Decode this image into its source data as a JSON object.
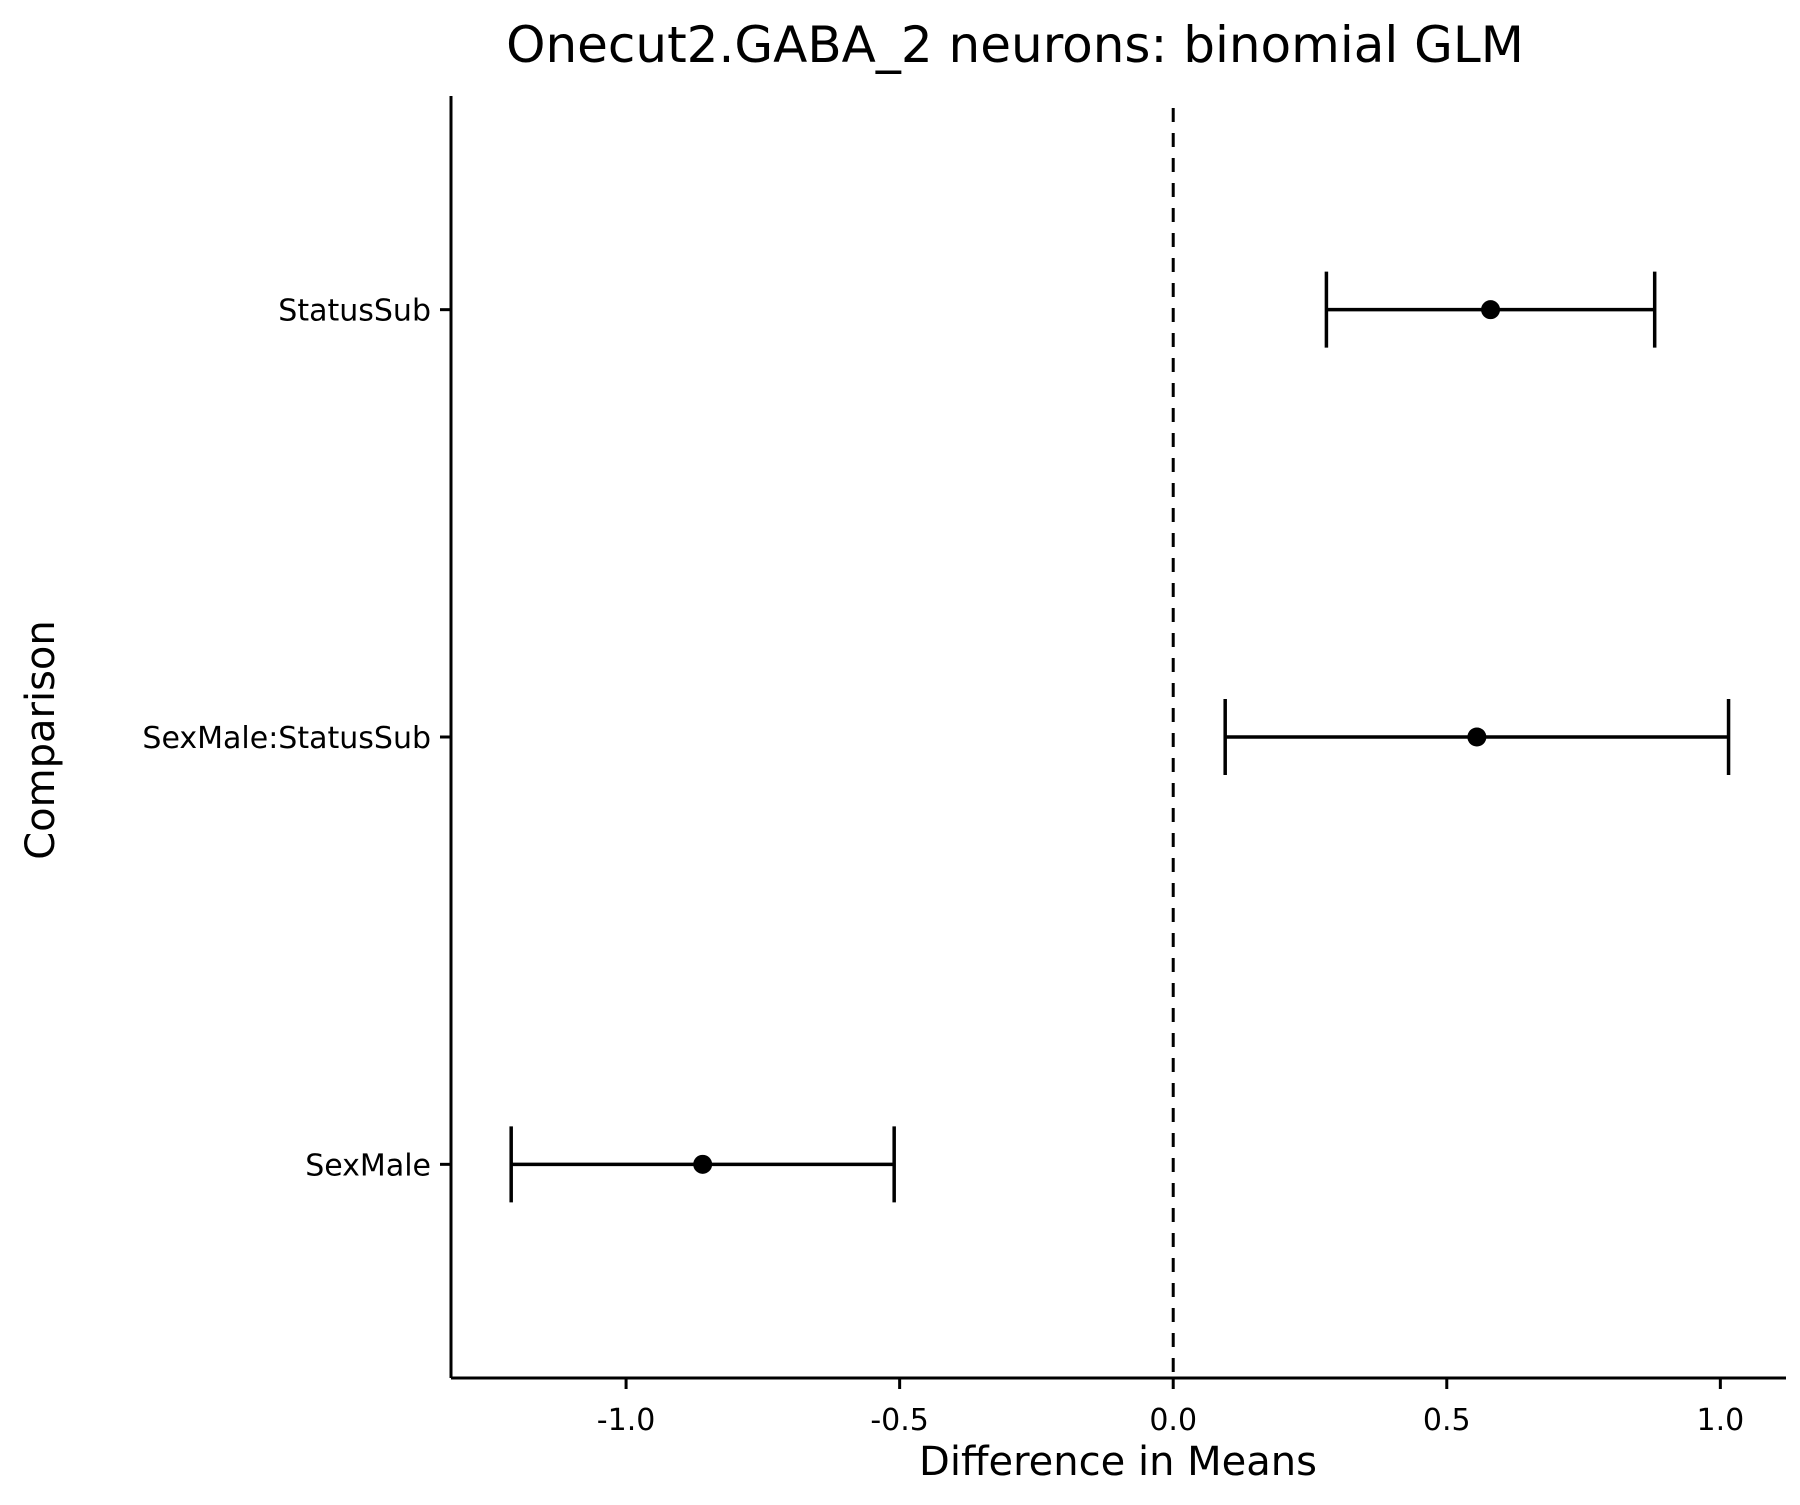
{
  "chart_data": {
    "type": "errorbar",
    "title": "Onecut2.GABA_2 neurons: binomial GLM",
    "xlabel": "Difference in Means",
    "ylabel": "Comparison",
    "xlim": [
      -1.32,
      1.12
    ],
    "reference_line": {
      "x": 0,
      "style": "dashed"
    },
    "x_ticks": [
      {
        "value": -1.0,
        "label": "-1.0"
      },
      {
        "value": -0.5,
        "label": "-0.5"
      },
      {
        "value": 0.0,
        "label": "0.0"
      },
      {
        "value": 0.5,
        "label": "0.5"
      },
      {
        "value": 1.0,
        "label": "1.0"
      }
    ],
    "categories": [
      "StatusSub",
      "SexMale:StatusSub",
      "SexMale"
    ],
    "points": [
      {
        "category": "StatusSub",
        "estimate": 0.58,
        "lower": 0.28,
        "upper": 0.88
      },
      {
        "category": "SexMale:StatusSub",
        "estimate": 0.555,
        "lower": 0.095,
        "upper": 1.015
      },
      {
        "category": "SexMale",
        "estimate": -0.86,
        "lower": -1.21,
        "upper": -0.51
      }
    ],
    "grid": false,
    "legend": "none",
    "color": "#000000"
  }
}
